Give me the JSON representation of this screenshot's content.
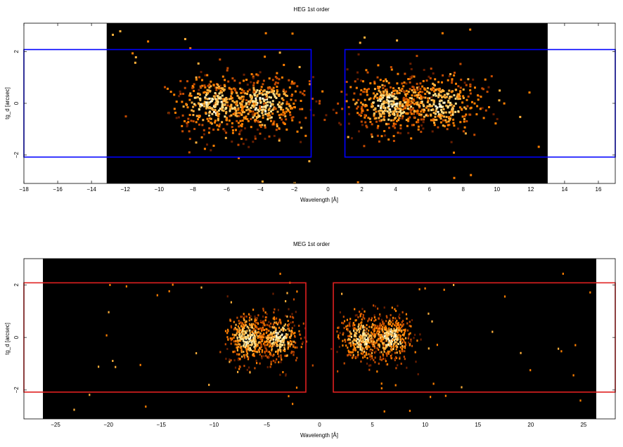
{
  "chart_data": [
    {
      "type": "heatmap",
      "title": "HEG 1st order",
      "xlabel": "Wavelength [Å]",
      "ylabel": "tg_d [arcsec]",
      "xlim": [
        -18,
        17
      ],
      "ylim": [
        -3.1,
        3.1
      ],
      "xticks": [
        -18,
        -16,
        -14,
        -12,
        -10,
        -8,
        -6,
        -4,
        -2,
        0,
        2,
        4,
        6,
        8,
        10,
        12,
        14,
        16
      ],
      "yticks": [
        -2,
        0,
        2
      ],
      "data_extent_x": [
        -13.1,
        13.0
      ],
      "background": "#000000",
      "region_color": "#0000ff",
      "regions": [
        {
          "x": [
            -18,
            -1.0
          ],
          "y": [
            -2.08,
            2.08
          ]
        },
        {
          "x": [
            1.0,
            17
          ],
          "y": [
            -2.08,
            2.08
          ]
        }
      ],
      "events": {
        "colormap": [
          "#6a1e00",
          "#c44a00",
          "#ff7f00",
          "#ffb03a",
          "#ffe08a",
          "#fffde0"
        ],
        "clusters": [
          {
            "center": -4.0,
            "sigma_x": 1.3,
            "sigma_y": 0.55,
            "density": 1.0
          },
          {
            "center": -6.8,
            "sigma_x": 1.3,
            "sigma_y": 0.55,
            "density": 0.9
          },
          {
            "center": 3.6,
            "sigma_x": 1.2,
            "sigma_y": 0.55,
            "density": 1.0
          },
          {
            "center": 6.6,
            "sigma_x": 1.2,
            "sigma_y": 0.55,
            "density": 0.9
          }
        ]
      }
    },
    {
      "type": "heatmap",
      "title": "MEG 1st order",
      "xlabel": "Wavelength [Å]",
      "ylabel": "tg_d [arcsec]",
      "xlim": [
        -28,
        28
      ],
      "ylim": [
        -3.1,
        3.0
      ],
      "xticks": [
        -25,
        -20,
        -15,
        -10,
        -5,
        0,
        5,
        10,
        15,
        20,
        25
      ],
      "yticks": [
        -2,
        0,
        2
      ],
      "data_extent_x": [
        -26.2,
        26.2
      ],
      "background": "#000000",
      "region_color": "#e02020",
      "regions": [
        {
          "x": [
            -28,
            -1.3
          ],
          "y": [
            -2.08,
            2.08
          ]
        },
        {
          "x": [
            1.3,
            28
          ],
          "y": [
            -2.08,
            2.08
          ]
        }
      ],
      "events": {
        "colormap": [
          "#6a1e00",
          "#c44a00",
          "#ff7f00",
          "#ffb03a",
          "#ffe08a",
          "#fffde0"
        ],
        "clusters": [
          {
            "center": -6.8,
            "sigma_x": 1.0,
            "sigma_y": 0.45,
            "density": 1.0
          },
          {
            "center": -3.9,
            "sigma_x": 1.0,
            "sigma_y": 0.45,
            "density": 0.8
          },
          {
            "center": 3.9,
            "sigma_x": 1.0,
            "sigma_y": 0.45,
            "density": 0.9
          },
          {
            "center": 6.7,
            "sigma_x": 1.0,
            "sigma_y": 0.45,
            "density": 1.0
          }
        ]
      }
    }
  ]
}
